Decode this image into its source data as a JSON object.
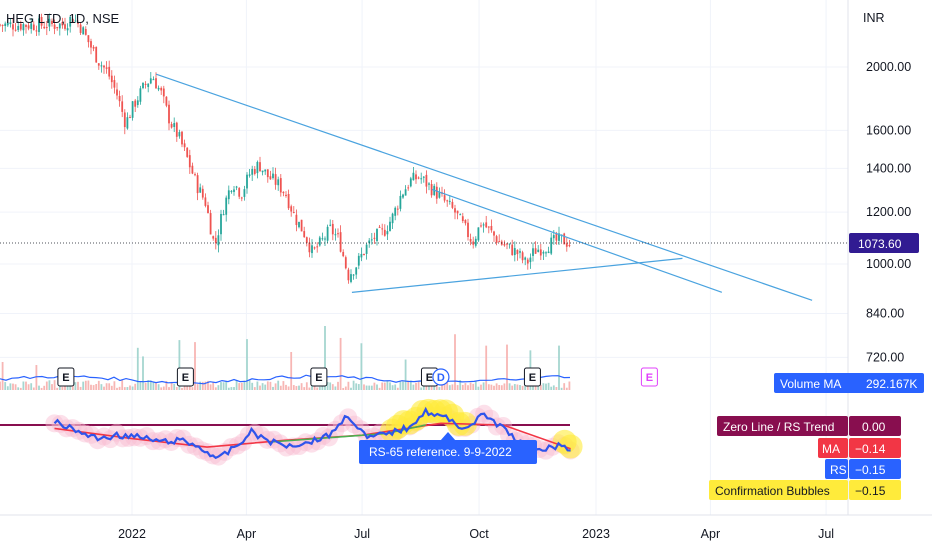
{
  "chart_title": "HEG LTD, 1D, NSE",
  "currency": "INR",
  "colors": {
    "up": "#26a69a",
    "down": "#ef5350",
    "trendline": "#4aa3df",
    "volume_ma": "#2962ff",
    "rs_line": "#2f54eb",
    "ma_line": "#f23645",
    "rs_trend": "#4caf50",
    "zero_line": "#880e4f",
    "bubble_pink": "#f8bbd0",
    "bubble_yellow": "#ffeb3b",
    "tooltip_bg": "#2962ff",
    "last_price_bg": "#311b92"
  },
  "chart_data": {
    "type": "candlestick",
    "y_scale": "log",
    "price_ticks": [
      "2000.00",
      "1600.00",
      "1400.00",
      "1200.00",
      "1000.00",
      "840.00",
      "720.00"
    ],
    "time_ticks": [
      "2022",
      "Apr",
      "Jul",
      "Oct",
      "2023",
      "Apr",
      "Jul"
    ],
    "last_price": "1073.60",
    "price_path": [
      [
        "2021-11-08",
        2320
      ],
      [
        "2021-11-15",
        2380
      ],
      [
        "2021-11-22",
        2300
      ],
      [
        "2021-11-29",
        2160
      ],
      [
        "2021-12-06",
        2040
      ],
      [
        "2021-12-13",
        1960
      ],
      [
        "2021-12-20",
        1820
      ],
      [
        "2021-12-27",
        1640
      ],
      [
        "2022-01-03",
        1760
      ],
      [
        "2022-01-10",
        1860
      ],
      [
        "2022-01-17",
        1940
      ],
      [
        "2022-01-24",
        1820
      ],
      [
        "2022-01-31",
        1650
      ],
      [
        "2022-02-07",
        1560
      ],
      [
        "2022-02-14",
        1440
      ],
      [
        "2022-02-21",
        1320
      ],
      [
        "2022-02-28",
        1240
      ],
      [
        "2022-03-07",
        1060
      ],
      [
        "2022-03-14",
        1220
      ],
      [
        "2022-03-21",
        1340
      ],
      [
        "2022-03-28",
        1280
      ],
      [
        "2022-04-04",
        1380
      ],
      [
        "2022-04-11",
        1420
      ],
      [
        "2022-04-18",
        1360
      ],
      [
        "2022-04-25",
        1330
      ],
      [
        "2022-05-02",
        1280
      ],
      [
        "2022-05-09",
        1180
      ],
      [
        "2022-05-16",
        1120
      ],
      [
        "2022-05-23",
        1040
      ],
      [
        "2022-05-30",
        1080
      ],
      [
        "2022-06-06",
        1130
      ],
      [
        "2022-06-13",
        1090
      ],
      [
        "2022-06-20",
        960
      ],
      [
        "2022-06-27",
        1000
      ],
      [
        "2022-07-04",
        1060
      ],
      [
        "2022-07-11",
        1100
      ],
      [
        "2022-07-18",
        1120
      ],
      [
        "2022-07-25",
        1180
      ],
      [
        "2022-08-01",
        1280
      ],
      [
        "2022-08-08",
        1340
      ],
      [
        "2022-08-15",
        1360
      ],
      [
        "2022-08-22",
        1320
      ],
      [
        "2022-08-29",
        1280
      ],
      [
        "2022-09-05",
        1240
      ],
      [
        "2022-09-12",
        1200
      ],
      [
        "2022-09-19",
        1140
      ],
      [
        "2022-09-26",
        1080
      ],
      [
        "2022-10-03",
        1160
      ],
      [
        "2022-10-10",
        1120
      ],
      [
        "2022-10-17",
        1080
      ],
      [
        "2022-10-24",
        1060
      ],
      [
        "2022-10-31",
        1040
      ],
      [
        "2022-11-07",
        1000
      ],
      [
        "2022-11-14",
        1050
      ],
      [
        "2022-11-21",
        1060
      ],
      [
        "2022-11-28",
        1080
      ],
      [
        "2022-12-05",
        1090
      ],
      [
        "2022-12-12",
        1073.6
      ]
    ],
    "trendlines": [
      {
        "start": [
          "2022-01-20",
          1950
        ],
        "end": [
          "2023-06-20",
          880
        ]
      },
      {
        "start": [
          "2022-08-25",
          1300
        ],
        "end": [
          "2023-04-10",
          905
        ]
      },
      {
        "start": [
          "2022-06-23",
          905
        ],
        "end": [
          "2023-03-10",
          1020
        ]
      }
    ],
    "earnings_markers": [
      {
        "date": "2021-11-10",
        "label": "E"
      },
      {
        "date": "2022-02-12",
        "label": "E"
      },
      {
        "date": "2022-05-28",
        "label": "E"
      },
      {
        "date": "2022-08-23",
        "label": "E"
      },
      {
        "date": "2022-11-12",
        "label": "E"
      },
      {
        "date": "2023-02-12",
        "label": "E",
        "future": true
      }
    ],
    "dividend_marker": {
      "date": "2022-09-01",
      "label": "D"
    },
    "volume_ma_label": "Volume MA",
    "volume_ma_value": "292.167K",
    "indicator": {
      "zero_line_label": "Zero Line / RS Trend",
      "zero_line_value": "0.00",
      "ma_label": "MA",
      "ma_value": "−0.14",
      "rs_label": "RS",
      "rs_value": "−0.15",
      "bubbles_label": "Confirmation Bubbles",
      "bubbles_value": "−0.15",
      "rs_path": [
        [
          "2021-11-01",
          0.02
        ],
        [
          "2021-11-20",
          -0.04
        ],
        [
          "2021-12-05",
          -0.08
        ],
        [
          "2021-12-20",
          -0.06
        ],
        [
          "2022-01-05",
          -0.07
        ],
        [
          "2022-01-25",
          -0.1
        ],
        [
          "2022-02-10",
          -0.09
        ],
        [
          "2022-02-25",
          -0.14
        ],
        [
          "2022-03-10",
          -0.2
        ],
        [
          "2022-03-25",
          -0.12
        ],
        [
          "2022-04-05",
          -0.04
        ],
        [
          "2022-04-20",
          -0.1
        ],
        [
          "2022-05-05",
          -0.12
        ],
        [
          "2022-05-20",
          -0.1
        ],
        [
          "2022-06-05",
          -0.06
        ],
        [
          "2022-06-20",
          0.06
        ],
        [
          "2022-07-05",
          -0.08
        ],
        [
          "2022-07-20",
          -0.05
        ],
        [
          "2022-08-05",
          -0.02
        ],
        [
          "2022-08-20",
          0.08
        ],
        [
          "2022-09-05",
          0.04
        ],
        [
          "2022-09-20",
          -0.02
        ],
        [
          "2022-10-05",
          0.06
        ],
        [
          "2022-10-20",
          -0.02
        ],
        [
          "2022-11-05",
          -0.12
        ],
        [
          "2022-11-20",
          -0.14
        ],
        [
          "2022-12-05",
          -0.12
        ],
        [
          "2022-12-12",
          -0.15
        ]
      ],
      "ma_path": [
        [
          "2021-11-01",
          -0.02
        ],
        [
          "2022-01-01",
          -0.08
        ],
        [
          "2022-03-01",
          -0.13
        ],
        [
          "2022-05-01",
          -0.09
        ],
        [
          "2022-07-01",
          -0.06
        ],
        [
          "2022-09-01",
          0.01
        ],
        [
          "2022-10-20",
          0.0
        ],
        [
          "2022-12-12",
          -0.14
        ]
      ],
      "tooltip": "RS-65 reference. 9-9-2022"
    }
  }
}
